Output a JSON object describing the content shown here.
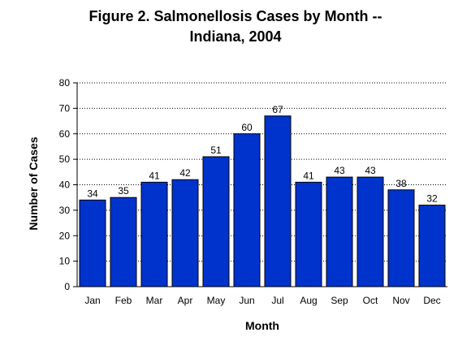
{
  "chart_data": {
    "type": "bar",
    "title_line1": "Figure 2.  Salmonellosis Cases by Month --",
    "title_line2": "Indiana, 2004",
    "xlabel": "Month",
    "ylabel": "Number of Cases",
    "categories": [
      "Jan",
      "Feb",
      "Mar",
      "Apr",
      "May",
      "Jun",
      "Jul",
      "Aug",
      "Sep",
      "Oct",
      "Nov",
      "Dec"
    ],
    "values": [
      34,
      35,
      41,
      42,
      51,
      60,
      67,
      41,
      43,
      43,
      38,
      32
    ],
    "ylim": [
      0,
      80
    ],
    "yticks": [
      0,
      10,
      20,
      30,
      40,
      50,
      60,
      70,
      80
    ],
    "grid": true,
    "grid_style": "dotted",
    "legend": "none",
    "bar_color": "#0033CC",
    "bar_edge_color": "#000000"
  }
}
